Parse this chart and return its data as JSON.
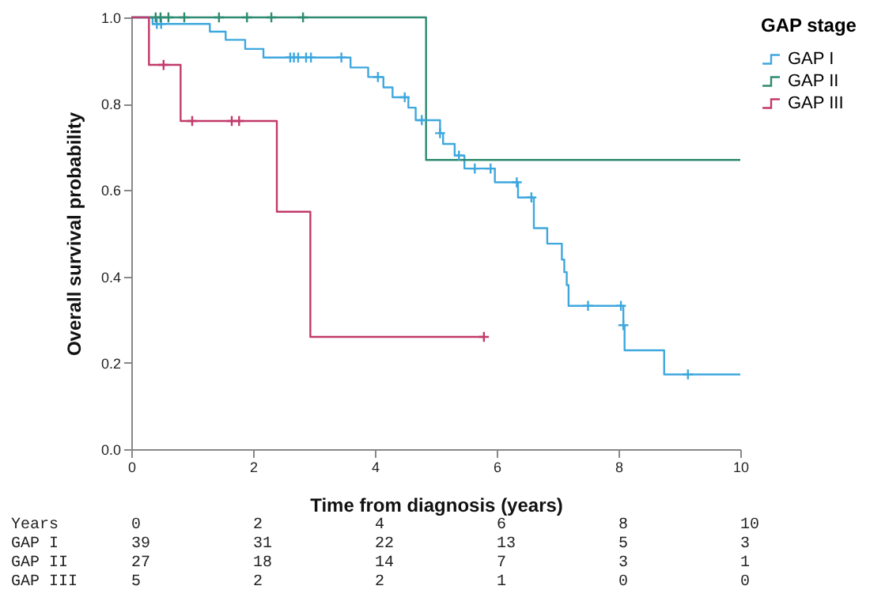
{
  "chart_data": {
    "type": "step",
    "xlabel": "Time from diagnosis (years)",
    "ylabel": "Overall survival probability",
    "legend_title": "GAP stage",
    "legend": "top right",
    "grid": false,
    "xlim": [
      0,
      10
    ],
    "xticks": [
      0,
      2,
      4,
      6,
      8,
      10
    ],
    "ylim": [
      0,
      1
    ],
    "yticks": [
      {
        "value": 0,
        "label": "0.0"
      },
      {
        "value": 0.2,
        "label": "0.2"
      },
      {
        "value": 0.4,
        "label": "0.4"
      },
      {
        "value": 0.6,
        "label": "0.6"
      },
      {
        "value": 0.8,
        "label": "0.8"
      },
      {
        "value": 1,
        "label": "1.0"
      }
    ],
    "series": [
      {
        "name": "GAP I",
        "color": "#3ea8de",
        "x": [
          0,
          0.35,
          1.29,
          1.55,
          1.87,
          2.17,
          3.6,
          3.89,
          4.14,
          4.29,
          4.55,
          4.67,
          5.07,
          5.12,
          5.31,
          5.47,
          5.97,
          6.35,
          6.61,
          6.83,
          7.07,
          7.11,
          7.15,
          7.18,
          8.08,
          8.1,
          8.75,
          10
        ],
        "values": [
          1,
          0.985,
          0.967,
          0.948,
          0.927,
          0.907,
          0.884,
          0.862,
          0.838,
          0.815,
          0.791,
          0.762,
          0.732,
          0.707,
          0.68,
          0.65,
          0.618,
          0.583,
          0.512,
          0.476,
          0.439,
          0.41,
          0.38,
          0.332,
          0.287,
          0.229,
          0.173,
          0.173
        ]
      },
      {
        "name": "GAP II",
        "color": "#2e8a70",
        "x": [
          0,
          4.84,
          10
        ],
        "values": [
          1,
          0.67,
          0.67
        ]
      },
      {
        "name": "GAP III",
        "color": "#c23a6b",
        "x": [
          0,
          0.29,
          0.81,
          2.39,
          2.94,
          5.79
        ],
        "values": [
          1,
          0.89,
          0.76,
          0.55,
          0.26,
          0.26
        ]
      },
      {
        "type": "scatter",
        "marker": "cross",
        "color": "#3ea8de",
        "x": [
          0.42,
          0.49,
          2.61,
          2.67,
          2.74,
          2.87,
          2.95,
          3.45,
          4.05,
          4.49,
          4.77,
          5.07,
          5.38,
          5.64,
          5.9,
          6.33,
          6.57,
          7.5,
          8.04,
          8.08,
          9.14
        ],
        "values": [
          0.985,
          0.985,
          0.907,
          0.907,
          0.907,
          0.907,
          0.907,
          0.907,
          0.862,
          0.815,
          0.762,
          0.732,
          0.68,
          0.65,
          0.65,
          0.618,
          0.583,
          0.332,
          0.332,
          0.287,
          0.173
        ]
      },
      {
        "type": "scatter",
        "marker": "cross",
        "color": "#2e8a70",
        "x": [
          0.4,
          0.48,
          0.61,
          0.87,
          1.44,
          1.9,
          2.3,
          2.82
        ],
        "values": [
          1,
          1,
          1,
          1,
          1,
          1,
          1,
          1
        ]
      },
      {
        "type": "scatter",
        "marker": "cross",
        "color": "#c23a6b",
        "x": [
          0.53,
          1.0,
          1.65,
          1.77,
          5.79
        ],
        "values": [
          0.89,
          0.76,
          0.76,
          0.76,
          0.26
        ]
      }
    ],
    "annotations": [
      "Years",
      "0",
      "2",
      "4",
      "6",
      "8",
      "10",
      "GAP I",
      "39",
      "31",
      "22",
      "13",
      "5",
      "3",
      "GAP II",
      "27",
      "18",
      "14",
      "7",
      "3",
      "1",
      "GAP III",
      "5",
      "2",
      "2",
      "1",
      "0",
      "0"
    ]
  }
}
